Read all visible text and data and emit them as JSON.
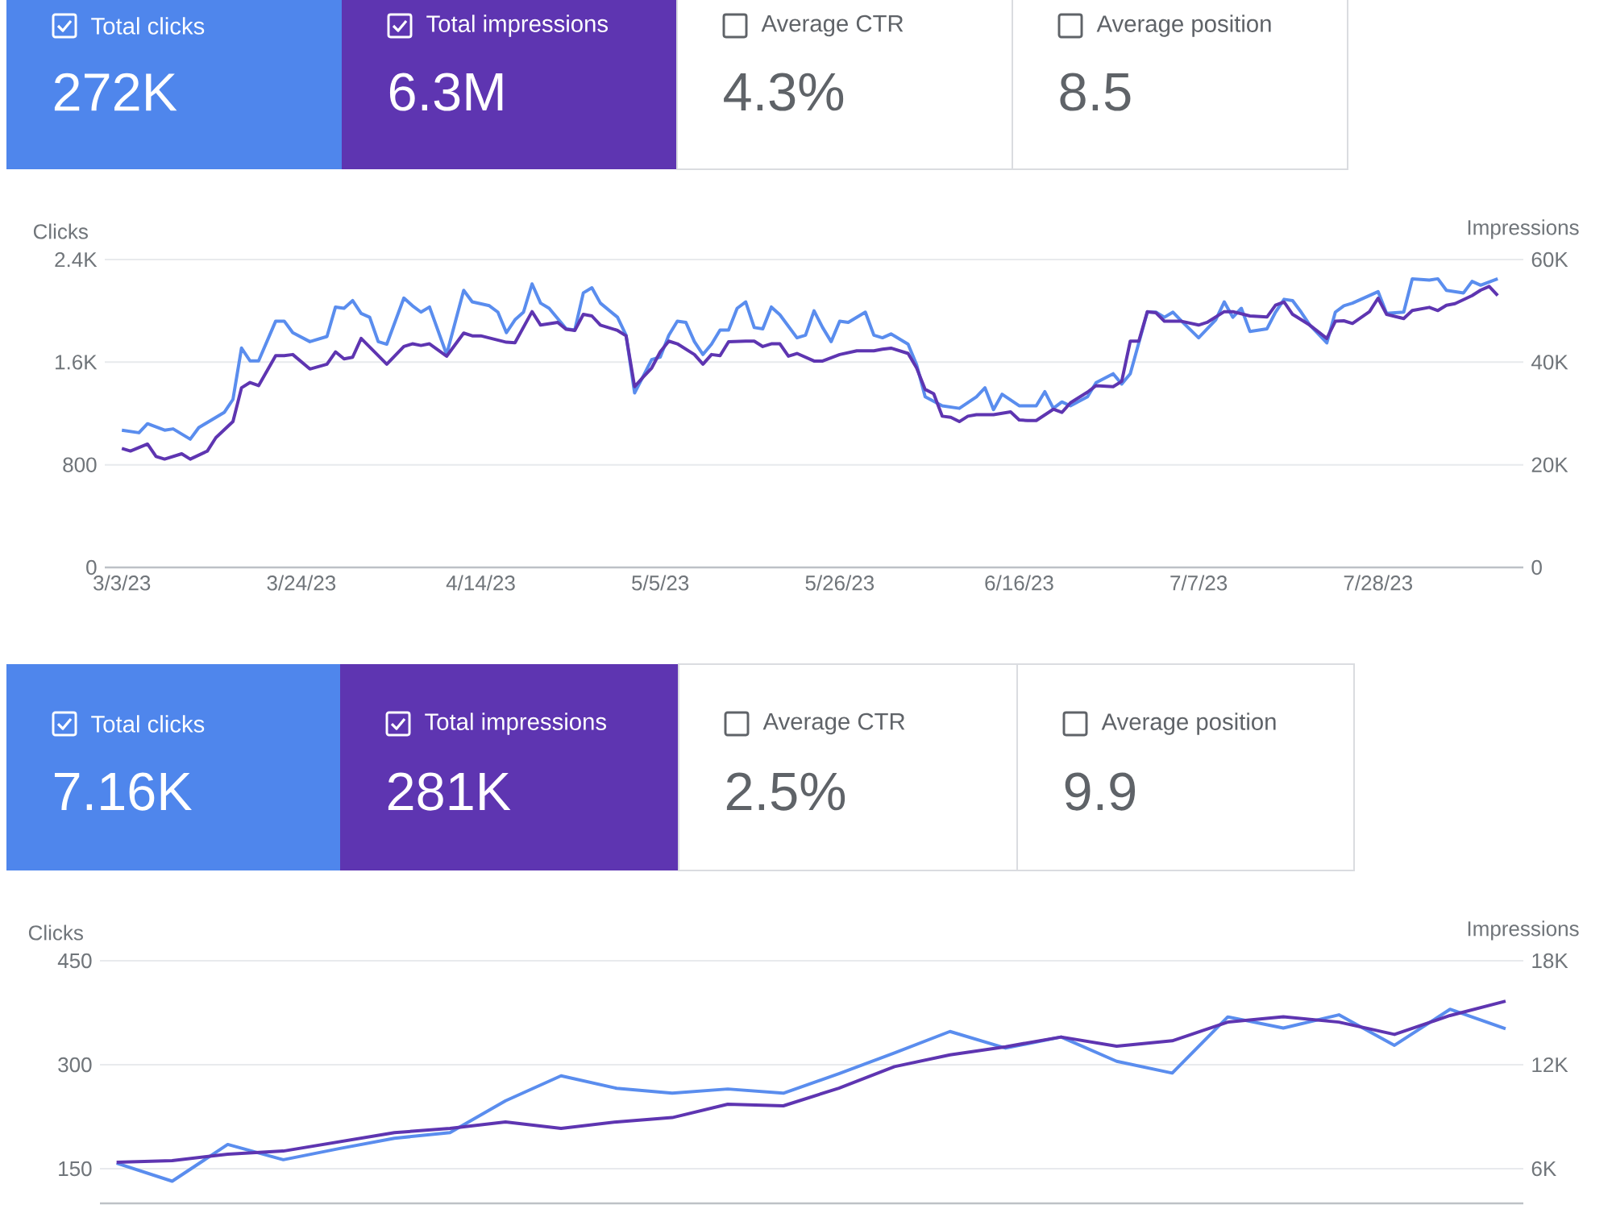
{
  "chart_data": [
    {
      "type": "other",
      "categories": [
        "Total clicks",
        "Total impressions",
        "Average CTR",
        "Average position"
      ],
      "value_labels": [
        "272K",
        "6.3M",
        "4.3%",
        "8.5"
      ],
      "colors": [
        "#4f86ec",
        "#5e35b1",
        "#ffffff",
        "#ffffff"
      ]
    },
    {
      "type": "line",
      "ylabel": "Clicks",
      "y2label": "Impressions",
      "xlim": [
        "2023-03-01",
        "2023-08-14"
      ],
      "xticks": [
        {
          "value": "2023-03-03",
          "label": "3/3/23"
        },
        {
          "value": "2023-03-24",
          "label": "3/24/23"
        },
        {
          "value": "2023-04-14",
          "label": "4/14/23"
        },
        {
          "value": "2023-05-05",
          "label": "5/5/23"
        },
        {
          "value": "2023-05-26",
          "label": "5/26/23"
        },
        {
          "value": "2023-06-16",
          "label": "6/16/23"
        },
        {
          "value": "2023-07-07",
          "label": "7/7/23"
        },
        {
          "value": "2023-07-28",
          "label": "7/28/23"
        }
      ],
      "ylim": [
        0,
        2400
      ],
      "yticks": [
        0,
        800,
        {
          "value": 1600,
          "label": "1.6K"
        },
        {
          "value": 2400,
          "label": "2.4K"
        }
      ],
      "y2lim": [
        0,
        60000
      ],
      "y2ticks": [
        0,
        {
          "value": 20000,
          "label": "20K"
        },
        {
          "value": 40000,
          "label": "40K"
        },
        {
          "value": 60000,
          "label": "60K"
        }
      ],
      "grid": "y",
      "series": [
        {
          "color": "#5a8dee",
          "x": [
            "2023-03-03",
            "2023-03-05",
            "2023-03-06",
            "2023-03-08",
            "2023-03-09",
            "2023-03-11",
            "2023-03-12",
            "2023-03-13",
            "2023-03-15",
            "2023-03-16",
            "2023-03-17",
            "2023-03-18",
            "2023-03-19",
            "2023-03-21",
            "2023-03-22",
            "2023-03-23",
            "2023-03-25",
            "2023-03-27",
            "2023-03-28",
            "2023-03-29",
            "2023-03-30",
            "2023-03-31",
            "2023-04-01",
            "2023-04-02",
            "2023-04-03",
            "2023-04-05",
            "2023-04-06",
            "2023-04-07",
            "2023-04-08",
            "2023-04-10",
            "2023-04-12",
            "2023-04-13",
            "2023-04-15",
            "2023-04-16",
            "2023-04-17",
            "2023-04-18",
            "2023-04-19",
            "2023-04-20",
            "2023-04-21",
            "2023-04-22",
            "2023-04-24",
            "2023-04-25",
            "2023-04-26",
            "2023-04-27",
            "2023-04-28",
            "2023-04-30",
            "2023-05-01",
            "2023-05-02",
            "2023-05-03",
            "2023-05-04",
            "2023-05-05",
            "2023-05-06",
            "2023-05-07",
            "2023-05-08",
            "2023-05-09",
            "2023-05-10",
            "2023-05-11",
            "2023-05-12",
            "2023-05-13",
            "2023-05-14",
            "2023-05-15",
            "2023-05-16",
            "2023-05-17",
            "2023-05-18",
            "2023-05-19",
            "2023-05-21",
            "2023-05-22",
            "2023-05-23",
            "2023-05-24",
            "2023-05-25",
            "2023-05-26",
            "2023-05-27",
            "2023-05-29",
            "2023-05-30",
            "2023-05-31",
            "2023-06-01",
            "2023-06-03",
            "2023-06-04",
            "2023-06-05",
            "2023-06-07",
            "2023-06-09",
            "2023-06-11",
            "2023-06-12",
            "2023-06-13",
            "2023-06-14",
            "2023-06-16",
            "2023-06-17",
            "2023-06-18",
            "2023-06-19",
            "2023-06-20",
            "2023-06-21",
            "2023-06-22",
            "2023-06-24",
            "2023-06-25",
            "2023-06-27",
            "2023-06-28",
            "2023-06-29",
            "2023-07-01",
            "2023-07-02",
            "2023-07-03",
            "2023-07-04",
            "2023-07-05",
            "2023-07-07",
            "2023-07-09",
            "2023-07-10",
            "2023-07-11",
            "2023-07-12",
            "2023-07-13",
            "2023-07-15",
            "2023-07-16",
            "2023-07-17",
            "2023-07-18",
            "2023-07-19",
            "2023-07-20",
            "2023-07-22",
            "2023-07-23",
            "2023-07-24",
            "2023-07-25",
            "2023-07-27",
            "2023-07-28",
            "2023-07-29",
            "2023-07-31",
            "2023-08-01",
            "2023-08-03",
            "2023-08-04",
            "2023-08-05",
            "2023-08-07",
            "2023-08-08",
            "2023-08-09",
            "2023-08-11"
          ],
          "values": [
            1070,
            1050,
            1120,
            1070,
            1080,
            1000,
            1090,
            1130,
            1210,
            1310,
            1710,
            1610,
            1610,
            1920,
            1920,
            1830,
            1760,
            1800,
            2030,
            2020,
            2080,
            1980,
            1950,
            1760,
            1740,
            2100,
            2040,
            1990,
            2030,
            1660,
            2160,
            2070,
            2040,
            1990,
            1830,
            1930,
            1990,
            2210,
            2060,
            2020,
            1860,
            1850,
            2140,
            2180,
            2060,
            1950,
            1810,
            1360,
            1490,
            1620,
            1640,
            1810,
            1920,
            1910,
            1760,
            1660,
            1740,
            1850,
            1850,
            2020,
            2070,
            1870,
            1860,
            2030,
            1970,
            1790,
            1810,
            2000,
            1870,
            1760,
            1920,
            1910,
            1990,
            1810,
            1790,
            1820,
            1740,
            1580,
            1330,
            1260,
            1240,
            1330,
            1400,
            1230,
            1350,
            1260,
            1260,
            1260,
            1370,
            1240,
            1290,
            1260,
            1330,
            1440,
            1510,
            1430,
            1510,
            1990,
            1990,
            1950,
            1990,
            1920,
            1790,
            1930,
            2070,
            1950,
            2020,
            1840,
            1860,
            1990,
            2090,
            2080,
            1990,
            1890,
            1750,
            1990,
            2040,
            2060,
            2120,
            2150,
            1980,
            1990,
            2250,
            2240,
            2250,
            2160,
            2140,
            2230,
            2200,
            2250
          ]
        },
        {
          "color": "#5e35b1",
          "axis": "y2",
          "x": [
            "2023-03-03",
            "2023-03-04",
            "2023-03-06",
            "2023-03-07",
            "2023-03-08",
            "2023-03-10",
            "2023-03-11",
            "2023-03-13",
            "2023-03-14",
            "2023-03-16",
            "2023-03-17",
            "2023-03-18",
            "2023-03-19",
            "2023-03-21",
            "2023-03-22",
            "2023-03-23",
            "2023-03-25",
            "2023-03-27",
            "2023-03-28",
            "2023-03-29",
            "2023-03-30",
            "2023-03-31",
            "2023-04-03",
            "2023-04-05",
            "2023-04-06",
            "2023-04-07",
            "2023-04-08",
            "2023-04-10",
            "2023-04-12",
            "2023-04-13",
            "2023-04-14",
            "2023-04-17",
            "2023-04-18",
            "2023-04-20",
            "2023-04-21",
            "2023-04-23",
            "2023-04-24",
            "2023-04-25",
            "2023-04-26",
            "2023-04-27",
            "2023-04-28",
            "2023-04-30",
            "2023-05-01",
            "2023-05-02",
            "2023-05-03",
            "2023-05-04",
            "2023-05-05",
            "2023-05-06",
            "2023-05-07",
            "2023-05-09",
            "2023-05-10",
            "2023-05-11",
            "2023-05-12",
            "2023-05-13",
            "2023-05-15",
            "2023-05-16",
            "2023-05-17",
            "2023-05-18",
            "2023-05-19",
            "2023-05-20",
            "2023-05-21",
            "2023-05-23",
            "2023-05-24",
            "2023-05-26",
            "2023-05-28",
            "2023-05-30",
            "2023-05-31",
            "2023-06-01",
            "2023-06-03",
            "2023-06-04",
            "2023-06-05",
            "2023-06-06",
            "2023-06-07",
            "2023-06-08",
            "2023-06-09",
            "2023-06-10",
            "2023-06-11",
            "2023-06-13",
            "2023-06-15",
            "2023-06-16",
            "2023-06-17",
            "2023-06-18",
            "2023-06-20",
            "2023-06-21",
            "2023-06-22",
            "2023-06-24",
            "2023-06-25",
            "2023-06-27",
            "2023-06-28",
            "2023-06-29",
            "2023-06-30",
            "2023-07-01",
            "2023-07-02",
            "2023-07-03",
            "2023-07-05",
            "2023-07-07",
            "2023-07-08",
            "2023-07-10",
            "2023-07-11",
            "2023-07-13",
            "2023-07-15",
            "2023-07-16",
            "2023-07-17",
            "2023-07-18",
            "2023-07-20",
            "2023-07-22",
            "2023-07-23",
            "2023-07-24",
            "2023-07-25",
            "2023-07-27",
            "2023-07-28",
            "2023-07-29",
            "2023-07-31",
            "2023-08-01",
            "2023-08-03",
            "2023-08-04",
            "2023-08-05",
            "2023-08-06",
            "2023-08-08",
            "2023-08-09",
            "2023-08-10",
            "2023-08-11"
          ],
          "values": [
            23200,
            22680,
            24040,
            21630,
            21110,
            22150,
            21110,
            22680,
            25290,
            28420,
            35010,
            36050,
            35430,
            41280,
            41280,
            41490,
            38670,
            39610,
            42010,
            40650,
            40960,
            44620,
            39610,
            43050,
            43580,
            43260,
            43580,
            41160,
            45670,
            45140,
            45140,
            43890,
            43790,
            49850,
            47230,
            47760,
            46400,
            46190,
            49320,
            49010,
            47230,
            46190,
            45140,
            35220,
            37100,
            38870,
            42010,
            44100,
            43580,
            41490,
            39610,
            41490,
            41280,
            43990,
            44100,
            44100,
            43050,
            43580,
            43580,
            41170,
            41700,
            40230,
            40230,
            41490,
            42220,
            42220,
            42530,
            42740,
            41700,
            38870,
            34690,
            33860,
            29470,
            29260,
            28420,
            29470,
            29780,
            29780,
            30310,
            28740,
            28630,
            28630,
            30830,
            30200,
            32080,
            34170,
            35430,
            35220,
            36260,
            44100,
            44100,
            49850,
            49640,
            47970,
            47970,
            47230,
            47760,
            49850,
            49850,
            49010,
            48800,
            51100,
            51730,
            49320,
            47230,
            44620,
            47970,
            48070,
            47550,
            49850,
            52460,
            49320,
            48490,
            50060,
            50680,
            50060,
            51100,
            51410,
            52980,
            54030,
            54760,
            52980
          ]
        }
      ]
    },
    {
      "type": "other",
      "categories": [
        "Total clicks",
        "Total impressions",
        "Average CTR",
        "Average position"
      ],
      "value_labels": [
        "7.16K",
        "281K",
        "2.5%",
        "9.9"
      ],
      "colors": [
        "#4f86ec",
        "#5e35b1",
        "#ffffff",
        "#ffffff"
      ]
    },
    {
      "type": "line",
      "ylabel": "Clicks",
      "y2label": "Impressions",
      "categories": [
        null,
        null,
        null,
        null,
        null,
        null,
        null,
        null,
        null,
        null,
        null,
        null,
        null,
        null,
        null,
        null,
        null,
        null,
        null,
        null,
        null,
        null,
        null,
        null,
        null,
        null
      ],
      "ylim": [
        100,
        450
      ],
      "yticks": [
        150,
        300,
        450
      ],
      "y2lim": [
        4000,
        18000
      ],
      "y2ticks": [
        {
          "value": 6000,
          "label": "6K"
        },
        {
          "value": 12000,
          "label": "12K"
        },
        {
          "value": 18000,
          "label": "18K"
        }
      ],
      "grid": "y",
      "tick_labels": "y",
      "series": [
        {
          "color": "#5a8dee",
          "values": [
            158,
            132,
            185,
            163,
            179,
            194,
            202,
            248,
            284,
            266,
            259,
            265,
            259,
            287,
            317,
            348,
            324,
            340,
            305,
            288,
            369,
            353,
            372,
            328,
            380,
            352
          ]
        },
        {
          "color": "#5e35b1",
          "axis": "y2",
          "values": [
            6370,
            6470,
            6840,
            7020,
            7550,
            8080,
            8330,
            8700,
            8330,
            8700,
            8950,
            9720,
            9630,
            10650,
            11890,
            12570,
            13040,
            13600,
            13070,
            13380,
            14460,
            14770,
            14460,
            13750,
            14840,
            15670
          ]
        }
      ]
    }
  ]
}
